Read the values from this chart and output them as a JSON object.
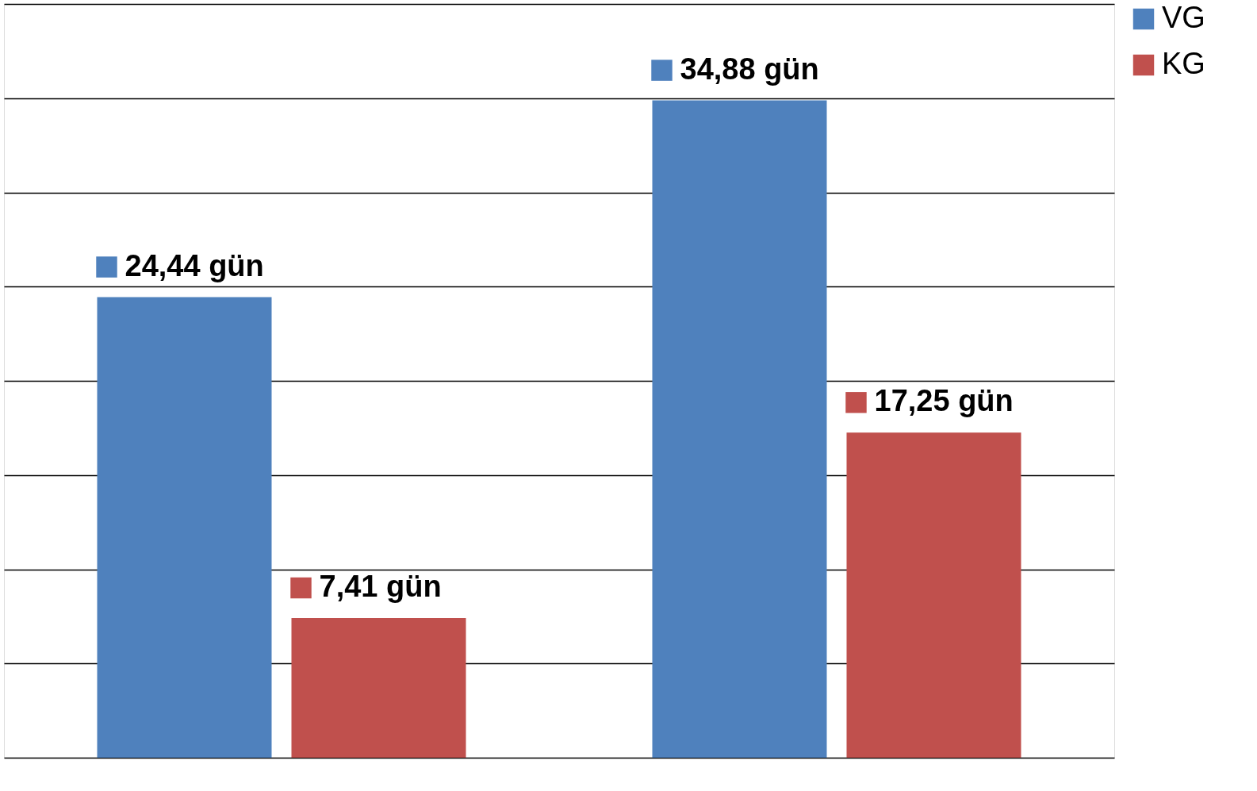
{
  "chart_data": {
    "type": "bar",
    "categories": [
      null,
      null
    ],
    "series": [
      {
        "name": "VG",
        "color": "#4f81bd",
        "values": [
          24.44,
          34.88
        ],
        "value_labels": [
          "24,44 gün",
          "34,88 gün"
        ]
      },
      {
        "name": "KG",
        "color": "#c0504d",
        "values": [
          7.41,
          17.25
        ],
        "value_labels": [
          "7,41 gün",
          "17,25 gün"
        ]
      }
    ],
    "ylim": [
      0,
      40
    ],
    "yticks": [
      {
        "value": 0,
        "label": null
      },
      {
        "value": 5,
        "label": null
      },
      {
        "value": 10,
        "label": null
      },
      {
        "value": 15,
        "label": null
      },
      {
        "value": 20,
        "label": null
      },
      {
        "value": 25,
        "label": null
      },
      {
        "value": 30,
        "label": null
      },
      {
        "value": 35,
        "label": null
      },
      {
        "value": 40,
        "label": null
      }
    ],
    "grid": "y",
    "legend": "right",
    "tick_labels": false
  }
}
